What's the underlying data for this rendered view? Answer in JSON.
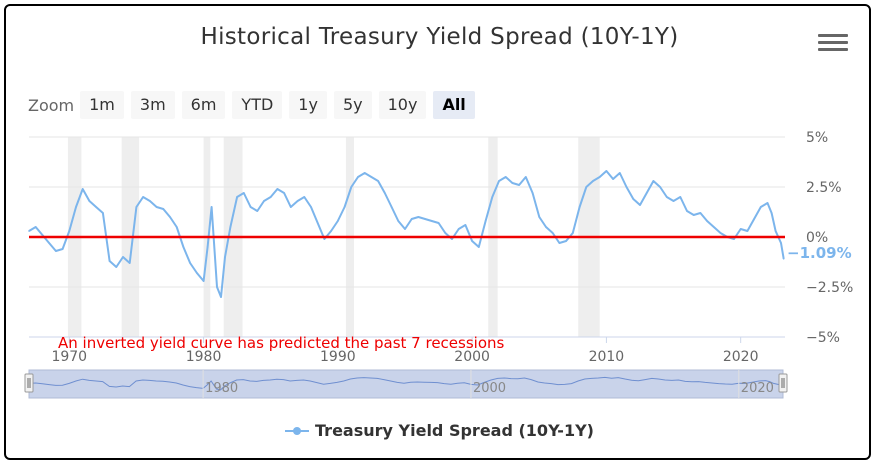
{
  "chart_data": {
    "type": "line",
    "title": "Historical Treasury Yield Spread (10Y-1Y)",
    "series": [
      {
        "name": "Treasury Yield Spread (10Y-1Y)",
        "color": "#7cb5ec",
        "x": [
          1967.0,
          1967.5,
          1968.0,
          1968.5,
          1969.0,
          1969.5,
          1970.0,
          1970.5,
          1971.0,
          1971.5,
          1972.0,
          1972.5,
          1973.0,
          1973.5,
          1974.0,
          1974.5,
          1975.0,
          1975.5,
          1976.0,
          1976.5,
          1977.0,
          1977.5,
          1978.0,
          1978.5,
          1979.0,
          1979.5,
          1980.0,
          1980.3,
          1980.6,
          1981.0,
          1981.3,
          1981.6,
          1982.0,
          1982.5,
          1983.0,
          1983.5,
          1984.0,
          1984.5,
          1985.0,
          1985.5,
          1986.0,
          1986.5,
          1987.0,
          1987.5,
          1988.0,
          1988.5,
          1989.0,
          1989.5,
          1990.0,
          1990.5,
          1991.0,
          1991.5,
          1992.0,
          1992.5,
          1993.0,
          1993.5,
          1994.0,
          1994.5,
          1995.0,
          1995.5,
          1996.0,
          1996.5,
          1997.0,
          1997.5,
          1998.0,
          1998.5,
          1999.0,
          1999.5,
          2000.0,
          2000.5,
          2001.0,
          2001.5,
          2002.0,
          2002.5,
          2003.0,
          2003.5,
          2004.0,
          2004.5,
          2005.0,
          2005.5,
          2006.0,
          2006.5,
          2007.0,
          2007.5,
          2008.0,
          2008.5,
          2009.0,
          2009.5,
          2010.0,
          2010.5,
          2011.0,
          2011.5,
          2012.0,
          2012.5,
          2013.0,
          2013.5,
          2014.0,
          2014.5,
          2015.0,
          2015.5,
          2016.0,
          2016.5,
          2017.0,
          2017.5,
          2018.0,
          2018.5,
          2019.0,
          2019.5,
          2020.0,
          2020.5,
          2021.0,
          2021.5,
          2022.0,
          2022.3,
          2022.6,
          2023.0,
          2023.2
        ],
        "y": [
          0.3,
          0.5,
          0.1,
          -0.3,
          -0.7,
          -0.6,
          0.3,
          1.5,
          2.4,
          1.8,
          1.5,
          1.2,
          -1.2,
          -1.5,
          -1.0,
          -1.3,
          1.5,
          2.0,
          1.8,
          1.5,
          1.4,
          1.0,
          0.5,
          -0.5,
          -1.3,
          -1.8,
          -2.2,
          -0.5,
          1.5,
          -2.5,
          -3.0,
          -1.0,
          0.5,
          2.0,
          2.2,
          1.5,
          1.3,
          1.8,
          2.0,
          2.4,
          2.2,
          1.5,
          1.8,
          2.0,
          1.5,
          0.7,
          -0.1,
          0.3,
          0.8,
          1.5,
          2.5,
          3.0,
          3.2,
          3.0,
          2.8,
          2.2,
          1.5,
          0.8,
          0.4,
          0.9,
          1.0,
          0.9,
          0.8,
          0.7,
          0.2,
          -0.1,
          0.4,
          0.6,
          -0.2,
          -0.5,
          0.8,
          2.0,
          2.8,
          3.0,
          2.7,
          2.6,
          3.0,
          2.2,
          1.0,
          0.5,
          0.2,
          -0.3,
          -0.2,
          0.2,
          1.5,
          2.5,
          2.8,
          3.0,
          3.3,
          2.9,
          3.2,
          2.5,
          1.9,
          1.6,
          2.2,
          2.8,
          2.5,
          2.0,
          1.8,
          2.0,
          1.3,
          1.1,
          1.2,
          0.8,
          0.5,
          0.2,
          0.0,
          -0.1,
          0.4,
          0.3,
          0.9,
          1.5,
          1.7,
          1.2,
          0.3,
          -0.3,
          -1.09
        ]
      }
    ],
    "current_value_label": "-1.09%",
    "y_ticks": [
      {
        "v": 5,
        "label": "5%"
      },
      {
        "v": 2.5,
        "label": "2.5%"
      },
      {
        "v": 0,
        "label": "0%"
      },
      {
        "v": -2.5,
        "label": "-2.5%"
      },
      {
        "v": -5,
        "label": "-5%"
      }
    ],
    "ylim": [
      -5,
      5
    ],
    "xlim": [
      1967,
      2023.3
    ],
    "x_ticks": [
      1970,
      1980,
      1990,
      2000,
      2010,
      2020
    ],
    "navigator_ticks": [
      1980,
      2000,
      2020
    ],
    "reference_line": {
      "value": 0,
      "color": "#ee0000"
    },
    "annotation": "An inverted yield curve has predicted the past 7 recessions",
    "recessions": [
      [
        1969.9,
        1970.9
      ],
      [
        1973.9,
        1975.2
      ],
      [
        1980.0,
        1980.5
      ],
      [
        1981.5,
        1982.9
      ],
      [
        1990.6,
        1991.2
      ],
      [
        2001.2,
        2001.9
      ],
      [
        2007.9,
        2009.5
      ]
    ],
    "grid": true,
    "legend": "bottom-center"
  },
  "toolbar": {
    "zoom_label": "Zoom",
    "buttons": [
      "1m",
      "3m",
      "6m",
      "YTD",
      "1y",
      "5y",
      "10y",
      "All"
    ],
    "active": "All"
  }
}
